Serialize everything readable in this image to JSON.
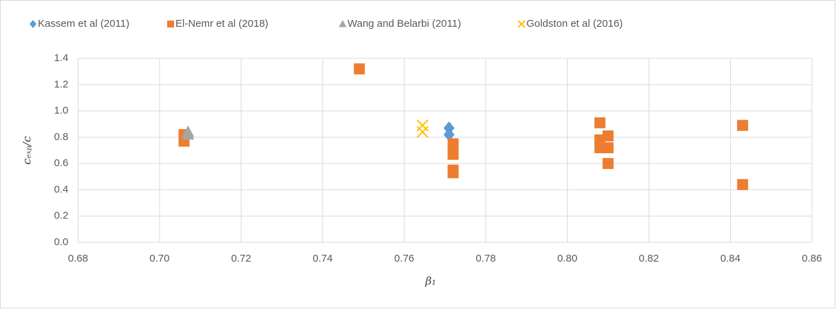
{
  "chart_data": {
    "type": "scatter",
    "xlabel": "β₁",
    "ylabel": "cₑₓₚ/c",
    "xlim": [
      0.68,
      0.86
    ],
    "xticks": [
      0.68,
      {
        "value": 0.7,
        "label": "0.70"
      },
      0.72,
      0.74,
      0.76,
      0.78,
      {
        "value": 0.8,
        "label": "0.80"
      },
      0.82,
      0.84,
      0.86
    ],
    "ylim": [
      0,
      1.4
    ],
    "yticks": [
      {
        "value": 0,
        "label": "0.0"
      },
      0.2,
      0.4,
      0.6,
      0.8,
      {
        "value": 1,
        "label": "1.0"
      },
      1.2,
      1.4
    ],
    "grid": true,
    "legend": "top",
    "series": [
      {
        "name": "Kassem et al (2011)",
        "color": "#5b9bd5",
        "marker": "diamond",
        "x": [
          0.771,
          0.771
        ],
        "values": [
          0.87,
          0.82
        ]
      },
      {
        "name": "El-Nemr et al (2018)",
        "color": "#ed7d31",
        "marker": "square",
        "x": [
          0.706,
          0.706,
          0.749,
          0.772,
          0.772,
          0.772,
          0.772,
          0.772,
          0.808,
          0.808,
          0.808,
          0.81,
          0.81,
          0.81,
          0.843,
          0.843
        ],
        "values": [
          0.82,
          0.77,
          1.32,
          0.75,
          0.72,
          0.67,
          0.55,
          0.53,
          0.91,
          0.78,
          0.72,
          0.81,
          0.72,
          0.6,
          0.89,
          0.44
        ]
      },
      {
        "name": "Wang and Belarbi (2011)",
        "color": "#a5a5a5",
        "marker": "triangle",
        "x": [
          0.707,
          0.707
        ],
        "values": [
          0.84,
          0.82
        ]
      },
      {
        "name": "Goldston et al (2016)",
        "color": "#ffc000",
        "marker": "x",
        "x": [
          0.7645,
          0.7645
        ],
        "values": [
          0.89,
          0.84
        ]
      }
    ]
  }
}
